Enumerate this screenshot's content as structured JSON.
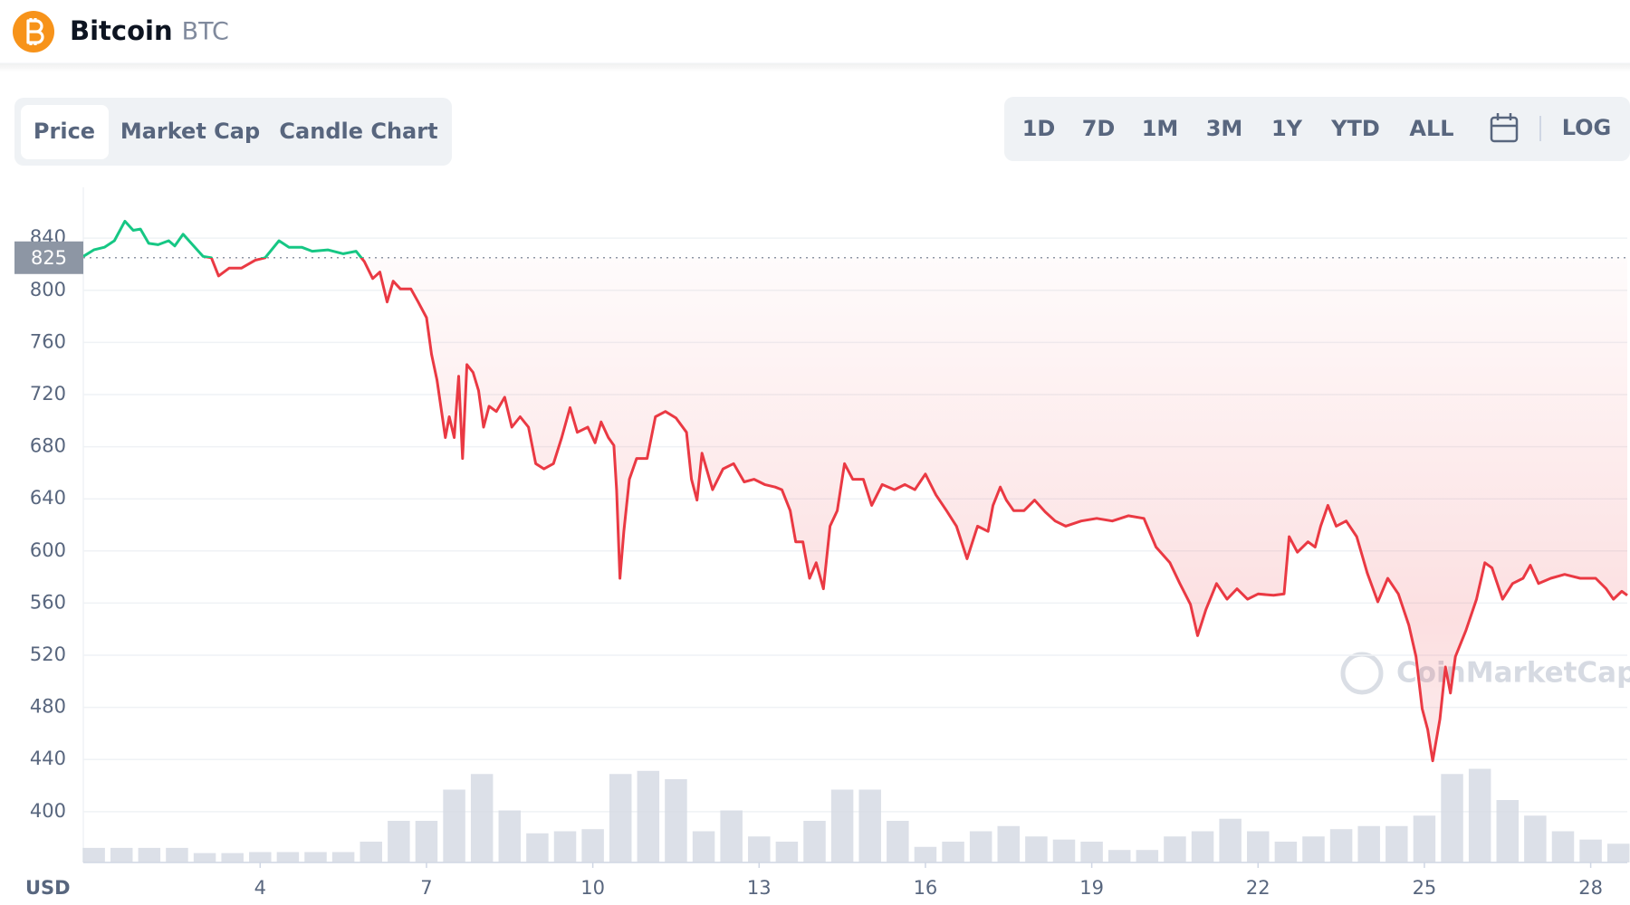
{
  "header": {
    "name": "Bitcoin",
    "symbol": "BTC"
  },
  "tabs": [
    "Price",
    "Market Cap",
    "Candle Chart"
  ],
  "ranges": [
    "1D",
    "7D",
    "1M",
    "3M",
    "1Y",
    "YTD",
    "ALL"
  ],
  "scale_toggle": "LOG",
  "watermark": "CoinMarketCap",
  "chart_data": {
    "type": "line",
    "y_label": "USD",
    "xlim": [
      0.81,
      28.66
    ],
    "xticks": [
      4,
      7,
      10,
      13,
      16,
      19,
      22,
      25,
      28
    ],
    "ylim": [
      361,
      879
    ],
    "yticks": [
      400,
      440,
      480,
      520,
      560,
      600,
      640,
      680,
      720,
      760,
      800,
      840
    ],
    "grid": true,
    "baseline": 825,
    "up_color": "#16c784",
    "down_color": "#ea3943",
    "x": [
      0.81,
      1.0,
      1.19,
      1.37,
      1.56,
      1.71,
      1.84,
      1.99,
      2.16,
      2.35,
      2.46,
      2.61,
      2.78,
      2.97,
      3.12,
      3.25,
      3.44,
      3.66,
      3.91,
      4.09,
      4.34,
      4.52,
      4.75,
      4.94,
      5.22,
      5.5,
      5.73,
      5.88,
      6.03,
      6.16,
      6.29,
      6.4,
      6.53,
      6.72,
      6.85,
      7.0,
      7.09,
      7.19,
      7.34,
      7.41,
      7.5,
      7.58,
      7.65,
      7.73,
      7.84,
      7.94,
      8.03,
      8.13,
      8.26,
      8.41,
      8.54,
      8.69,
      8.84,
      8.97,
      9.12,
      9.29,
      9.44,
      9.59,
      9.72,
      9.91,
      10.04,
      10.15,
      10.28,
      10.38,
      10.43,
      10.49,
      10.56,
      10.66,
      10.79,
      10.98,
      11.13,
      11.31,
      11.5,
      11.69,
      11.78,
      11.88,
      11.97,
      12.16,
      12.35,
      12.54,
      12.73,
      12.91,
      13.1,
      13.29,
      13.41,
      13.56,
      13.66,
      13.79,
      13.91,
      14.03,
      14.16,
      14.28,
      14.41,
      14.54,
      14.69,
      14.88,
      15.03,
      15.22,
      15.44,
      15.63,
      15.81,
      16.0,
      16.19,
      16.38,
      16.56,
      16.75,
      16.94,
      17.13,
      17.22,
      17.35,
      17.46,
      17.59,
      17.78,
      17.97,
      18.16,
      18.34,
      18.53,
      18.81,
      19.09,
      19.37,
      19.66,
      19.94,
      20.16,
      20.41,
      20.59,
      20.78,
      20.91,
      21.06,
      21.25,
      21.44,
      21.62,
      21.81,
      22.0,
      22.28,
      22.47,
      22.56,
      22.71,
      22.9,
      23.03,
      23.13,
      23.26,
      23.41,
      23.59,
      23.78,
      23.97,
      24.16,
      24.34,
      24.53,
      24.72,
      24.85,
      24.96,
      25.06,
      25.15,
      25.28,
      25.38,
      25.47,
      25.56,
      25.75,
      25.94,
      26.09,
      26.22,
      26.41,
      26.59,
      26.78,
      26.91,
      27.06,
      27.28,
      27.53,
      27.81,
      28.09,
      28.28,
      28.41,
      28.56,
      28.66
    ],
    "values": [
      826,
      831,
      833,
      838,
      853,
      846,
      847,
      836,
      835,
      838,
      834,
      843,
      835,
      826,
      825,
      811,
      817,
      817,
      823,
      825,
      838,
      833,
      833,
      830,
      831,
      828,
      830,
      822,
      809,
      814,
      791,
      807,
      801,
      801,
      791,
      779,
      751,
      731,
      687,
      703,
      687,
      734,
      671,
      743,
      737,
      723,
      695,
      711,
      707,
      718,
      695,
      703,
      695,
      667,
      663,
      667,
      687,
      710,
      691,
      695,
      683,
      699,
      687,
      681,
      647,
      579,
      615,
      655,
      671,
      671,
      703,
      707,
      702,
      691,
      655,
      639,
      675,
      647,
      663,
      667,
      653,
      655,
      651,
      649,
      647,
      631,
      607,
      607,
      579,
      591,
      571,
      619,
      631,
      667,
      655,
      655,
      635,
      651,
      647,
      651,
      647,
      659,
      643,
      631,
      619,
      594,
      619,
      615,
      635,
      649,
      639,
      631,
      631,
      639,
      630,
      623,
      619,
      623,
      625,
      623,
      627,
      625,
      603,
      591,
      575,
      559,
      535,
      555,
      575,
      563,
      571,
      563,
      567,
      566,
      567,
      611,
      599,
      607,
      603,
      619,
      635,
      619,
      623,
      611,
      583,
      561,
      579,
      567,
      543,
      519,
      479,
      463,
      439,
      471,
      511,
      491,
      519,
      539,
      563,
      591,
      587,
      563,
      575,
      579,
      589,
      575,
      579,
      582,
      579,
      579,
      571,
      563,
      569,
      566
    ],
    "volume": {
      "color": "#d3d8e2",
      "x": [
        1.0,
        1.5,
        2.0,
        2.5,
        3.0,
        3.5,
        4.0,
        4.5,
        5.0,
        5.5,
        6.0,
        6.5,
        7.0,
        7.5,
        8.0,
        8.5,
        9.0,
        9.5,
        10.0,
        10.5,
        11.0,
        11.5,
        12.0,
        12.5,
        13.0,
        13.5,
        14.0,
        14.5,
        15.0,
        15.5,
        16.0,
        16.5,
        17.0,
        17.5,
        18.0,
        18.5,
        19.0,
        19.5,
        20.0,
        20.5,
        21.0,
        21.5,
        22.0,
        22.5,
        23.0,
        23.5,
        24.0,
        24.5,
        25.0,
        25.5,
        26.0,
        26.5,
        27.0,
        27.5,
        28.0,
        28.5
      ],
      "values": [
        14,
        14,
        14,
        14,
        9,
        9,
        10,
        10,
        10,
        10,
        20,
        40,
        40,
        70,
        85,
        50,
        28,
        30,
        32,
        85,
        88,
        80,
        30,
        50,
        25,
        20,
        40,
        70,
        70,
        40,
        15,
        20,
        30,
        35,
        25,
        22,
        20,
        12,
        12,
        25,
        30,
        42,
        30,
        20,
        25,
        32,
        35,
        35,
        45,
        85,
        90,
        60,
        45,
        30,
        22,
        18
      ]
    }
  }
}
